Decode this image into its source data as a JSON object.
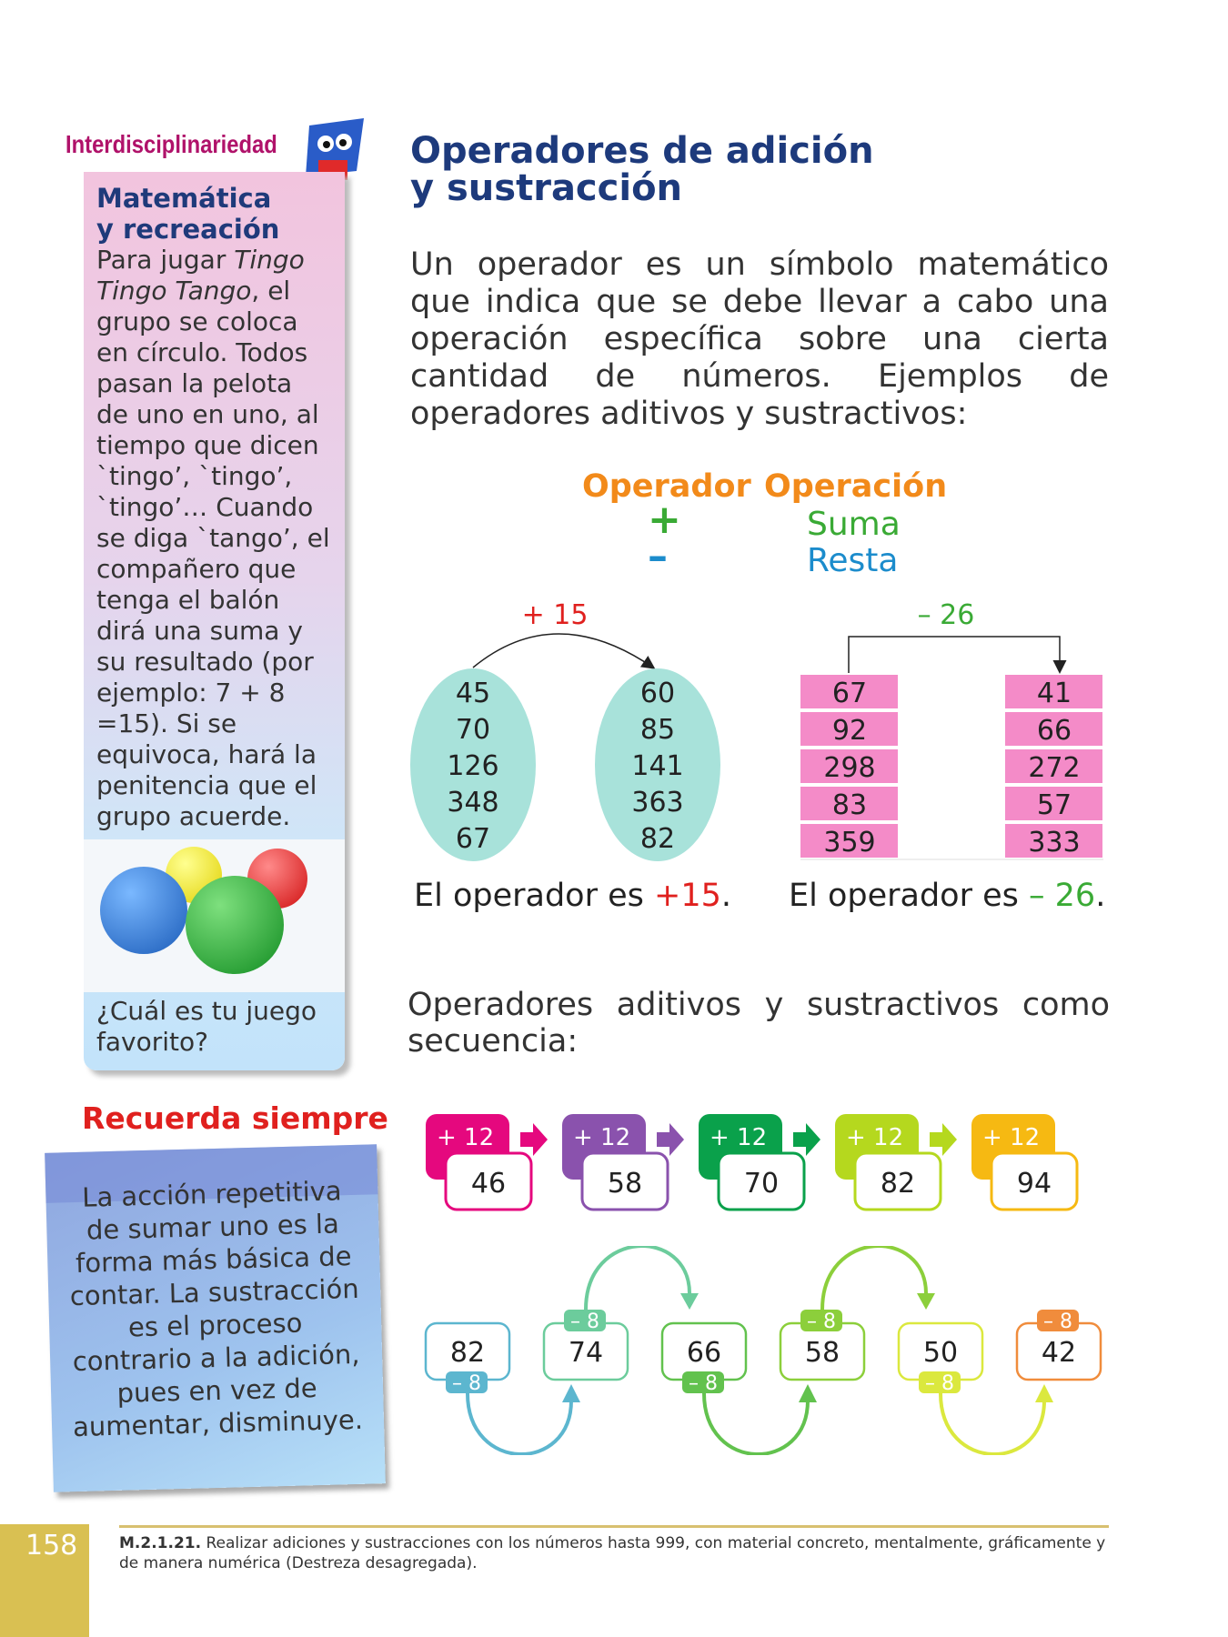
{
  "sidebar": {
    "section_label": "Interdisciplinariedad",
    "heading_line1": "Matemática",
    "heading_line2": "y recreación",
    "text_1": "Para jugar ",
    "text_game": "Tingo Tingo Tango",
    "text_2": ", el grupo se coloca en círculo. Todos pasan la pelota de uno en uno, al tiempo que dicen `tingo’, `tingo’, `tingo’… Cuando se diga `tango’, el compañero que tenga el balón dirá una suma y su resultado (por ejemplo: 7 + 8 =15). Si se equivoca, hará la penitencia que el grupo acuerde.",
    "question": "¿Cuál es tu juego favorito?"
  },
  "reminder": {
    "title": "Recuerda siempre",
    "text": "La acción repetitiva de sumar uno es la forma más básica de contar. La sustracción es el proceso contrario a la adición, pues en vez de aumentar, disminuye."
  },
  "main": {
    "title_line1": "Operadores de adición",
    "title_line2": "y sustracción",
    "intro": "Un operador es un símbolo matemático que indica que se debe llevar a cabo una operación específica sobre una cierta cantidad de números. Ejemplos de operadores aditivos y sustractivos:",
    "table": {
      "col1": "Operador",
      "col2": "Operación",
      "rows": [
        {
          "symbol": "+",
          "name": "Suma",
          "color": "#3aaa35"
        },
        {
          "symbol": "–",
          "name": "Resta",
          "color": "#1c8ccc"
        }
      ]
    },
    "example_add": {
      "operator": "+ 15",
      "left": [
        "45",
        "70",
        "126",
        "348",
        "67"
      ],
      "right": [
        "60",
        "85",
        "141",
        "363",
        "82"
      ],
      "caption": "El operador es ",
      "caption_value": "+15",
      "caption_end": "."
    },
    "example_sub": {
      "operator": "– 26",
      "left": [
        "67",
        "92",
        "298",
        "83",
        "359"
      ],
      "right": [
        "41",
        "66",
        "272",
        "57",
        "333"
      ],
      "caption": "El operador es ",
      "caption_value": "– 26",
      "caption_end": "."
    },
    "sequence_intro": "Operadores aditivos y sustractivos como secuencia:",
    "add_sequence": [
      {
        "op": "+ 12",
        "value": "46",
        "color": "#e5087e"
      },
      {
        "op": "+ 12",
        "value": "58",
        "color": "#8a52ad"
      },
      {
        "op": "+ 12",
        "value": "70",
        "color": "#0aa14b"
      },
      {
        "op": "+ 12",
        "value": "82",
        "color": "#b5d81e"
      },
      {
        "op": "+ 12",
        "value": "94",
        "color": "#f6b912"
      }
    ],
    "sub_sequence": [
      {
        "op": "– 8",
        "value": "82",
        "color": "#5cb6cf"
      },
      {
        "op": "– 8",
        "value": "74",
        "color": "#6ccc9c"
      },
      {
        "op": "– 8",
        "value": "66",
        "color": "#62c24e"
      },
      {
        "op": "– 8",
        "value": "58",
        "color": "#8ccf3b"
      },
      {
        "op": "– 8",
        "value": "50",
        "color": "#dbe83e"
      },
      {
        "op": "– 8",
        "value": "42",
        "color": "#f08c3c"
      }
    ]
  },
  "footer": {
    "code": "M.2.1.21.",
    "text": " Realizar adiciones y sustracciones con los números hasta 999, con material concreto, mentalmente, gráficamente y de manera numérica (Destreza desagregada).",
    "page_number": "158"
  }
}
